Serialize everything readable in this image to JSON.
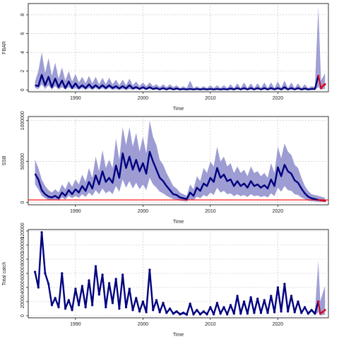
{
  "chart_data": [
    {
      "type": "line",
      "xlabel": "Time",
      "ylabel": "FBAR",
      "xlim": [
        1983,
        2027.5
      ],
      "ylim": [
        -0.2,
        9.2
      ],
      "xticks": [
        1990,
        2000,
        2010,
        2020
      ],
      "yticks": [
        0,
        2,
        4,
        6,
        8
      ],
      "ytick_labels": [
        "0",
        "2",
        "4",
        "6",
        "8"
      ],
      "grid": true,
      "colors": {
        "line": "#00007f",
        "band": "#9d9dd4",
        "proj": "#d6001c"
      },
      "x": [
        1984,
        1984.5,
        1985,
        1985.5,
        1986,
        1986.5,
        1987,
        1987.5,
        1988,
        1988.5,
        1989,
        1989.5,
        1990,
        1990.5,
        1991,
        1991.5,
        1992,
        1992.5,
        1993,
        1993.5,
        1994,
        1994.5,
        1995,
        1995.5,
        1996,
        1996.5,
        1997,
        1997.5,
        1998,
        1998.5,
        1999,
        1999.5,
        2000,
        2000.5,
        2001,
        2001.5,
        2002,
        2002.5,
        2003,
        2003.5,
        2004,
        2004.5,
        2005,
        2005.5,
        2006,
        2006.5,
        2007,
        2007.5,
        2008,
        2008.5,
        2009,
        2009.5,
        2010,
        2010.5,
        2011,
        2011.5,
        2012,
        2012.5,
        2013,
        2013.5,
        2014,
        2014.5,
        2015,
        2015.5,
        2016,
        2016.5,
        2017,
        2017.5,
        2018,
        2018.5,
        2019,
        2019.5,
        2020,
        2020.5,
        2021,
        2021.5,
        2022,
        2022.5,
        2023,
        2023.5,
        2024,
        2024.5,
        2025,
        2025.5,
        2026
      ],
      "values": [
        0.5,
        0.4,
        1.6,
        0.5,
        1.4,
        0.3,
        1.2,
        0.3,
        1.0,
        0.2,
        0.9,
        0.2,
        0.7,
        0.2,
        0.5,
        0.2,
        0.6,
        0.2,
        0.5,
        0.2,
        0.5,
        0.2,
        0.5,
        0.2,
        0.4,
        0.15,
        0.4,
        0.15,
        0.5,
        0.15,
        0.3,
        0.1,
        0.3,
        0.1,
        0.3,
        0.1,
        0.2,
        0.05,
        0.2,
        0.05,
        0.2,
        0.05,
        0.15,
        0.05,
        0.1,
        0.05,
        0.1,
        0.05,
        0.1,
        0.05,
        0.1,
        0.05,
        0.1,
        0.05,
        0.1,
        0.05,
        0.1,
        0.05,
        0.15,
        0.05,
        0.2,
        0.05,
        0.2,
        0.05,
        0.2,
        0.05,
        0.2,
        0.05,
        0.2,
        0.05,
        0.2,
        0.05,
        0.2,
        0.05,
        0.3,
        0.05,
        0.2,
        0.05,
        0.2,
        0.05,
        0.15,
        0.05,
        0.1,
        0.1,
        1.5
      ],
      "band_upper": [
        0.9,
        2.0,
        4.0,
        1.8,
        3.4,
        1.5,
        2.9,
        1.2,
        2.4,
        1.0,
        2.0,
        0.9,
        1.7,
        0.8,
        1.4,
        0.7,
        1.5,
        0.7,
        1.4,
        0.6,
        1.3,
        0.6,
        1.3,
        0.6,
        1.1,
        0.5,
        1.1,
        0.5,
        1.2,
        0.5,
        0.9,
        0.4,
        0.8,
        0.4,
        0.8,
        0.4,
        0.6,
        0.3,
        0.6,
        0.3,
        0.6,
        0.3,
        0.5,
        0.2,
        0.4,
        0.2,
        1.0,
        0.2,
        0.4,
        0.2,
        0.4,
        0.2,
        0.5,
        0.2,
        0.5,
        0.2,
        0.5,
        0.2,
        0.6,
        0.2,
        0.7,
        0.2,
        0.8,
        0.2,
        0.7,
        0.2,
        0.7,
        0.2,
        0.8,
        0.2,
        0.8,
        0.2,
        0.9,
        0.2,
        1.0,
        0.2,
        0.8,
        0.2,
        0.7,
        0.2,
        0.6,
        0.2,
        0.4,
        0.3,
        8.9
      ],
      "band_lower": [
        0.2,
        0.1,
        0.6,
        0.1,
        0.5,
        0.05,
        0.4,
        0.05,
        0.3,
        0.05,
        0.3,
        0.05,
        0.2,
        0.02,
        0.2,
        0.02,
        0.2,
        0.02,
        0.2,
        0.02,
        0.2,
        0.02,
        0.2,
        0.02,
        0.1,
        0.02,
        0.1,
        0.02,
        0.1,
        0.02,
        0.1,
        0.02,
        0.1,
        0.02,
        0.1,
        0.02,
        0.05,
        0.01,
        0.05,
        0.01,
        0.05,
        0.01,
        0.05,
        0.01,
        0.03,
        0.01,
        0.03,
        0.01,
        0.03,
        0.01,
        0.03,
        0.01,
        0.03,
        0.01,
        0.03,
        0.01,
        0.03,
        0.01,
        0.05,
        0.01,
        0.05,
        0.01,
        0.05,
        0.01,
        0.05,
        0.01,
        0.05,
        0.01,
        0.05,
        0.01,
        0.05,
        0.01,
        0.05,
        0.01,
        0.05,
        0.01,
        0.05,
        0.01,
        0.05,
        0.01,
        0.05,
        0.01,
        0.03,
        0.02,
        0.3
      ],
      "projection": {
        "x": [
          2026,
          2026.4,
          2026.8,
          2027
        ],
        "values": [
          1.5,
          0.2,
          0.5,
          0.6
        ],
        "band_upper": [
          8.9,
          1.0,
          1.5,
          1.8
        ],
        "band_lower": [
          0.3,
          0.05,
          0.1,
          0.1
        ]
      }
    },
    {
      "type": "line",
      "xlabel": "Time",
      "ylabel": "SSB",
      "xlim": [
        1983,
        2027.5
      ],
      "ylim": [
        -30000,
        1050000
      ],
      "xticks": [
        1990,
        2000,
        2010,
        2020
      ],
      "yticks": [
        0,
        500000,
        1000000
      ],
      "ytick_labels": [
        "0",
        "500000",
        "1000000"
      ],
      "grid": true,
      "reference_line": 30000,
      "colors": {
        "line": "#00007f",
        "band": "#9d9dd4",
        "ref": "#ff0000",
        "proj": "#d6001c"
      },
      "x": [
        1984,
        1984.5,
        1985,
        1985.5,
        1986,
        1986.5,
        1987,
        1987.5,
        1988,
        1988.5,
        1989,
        1989.5,
        1990,
        1990.5,
        1991,
        1991.5,
        1992,
        1992.5,
        1993,
        1993.5,
        1994,
        1994.5,
        1995,
        1995.5,
        1996,
        1996.5,
        1997,
        1997.5,
        1998,
        1998.5,
        1999,
        1999.5,
        2000,
        2000.5,
        2001,
        2001.5,
        2002,
        2002.5,
        2003,
        2003.5,
        2004,
        2004.5,
        2005,
        2005.5,
        2006,
        2006.5,
        2007,
        2007.5,
        2008,
        2008.5,
        2009,
        2009.5,
        2010,
        2010.5,
        2011,
        2011.5,
        2012,
        2012.5,
        2013,
        2013.5,
        2014,
        2014.5,
        2015,
        2015.5,
        2016,
        2016.5,
        2017,
        2017.5,
        2018,
        2018.5,
        2019,
        2019.5,
        2020,
        2020.5,
        2021,
        2021.5,
        2022,
        2022.5,
        2023,
        2023.5,
        2024,
        2024.5,
        2025,
        2025.5,
        2026
      ],
      "values": [
        350000,
        280000,
        150000,
        100000,
        70000,
        60000,
        80000,
        50000,
        120000,
        80000,
        150000,
        100000,
        160000,
        120000,
        200000,
        140000,
        250000,
        170000,
        330000,
        220000,
        380000,
        250000,
        300000,
        240000,
        450000,
        300000,
        600000,
        420000,
        560000,
        400000,
        520000,
        380000,
        480000,
        350000,
        620000,
        500000,
        400000,
        300000,
        260000,
        200000,
        150000,
        100000,
        90000,
        60000,
        50000,
        40000,
        120000,
        80000,
        180000,
        140000,
        230000,
        200000,
        300000,
        250000,
        420000,
        300000,
        340000,
        260000,
        280000,
        200000,
        260000,
        200000,
        230000,
        180000,
        260000,
        200000,
        220000,
        180000,
        210000,
        170000,
        280000,
        200000,
        430000,
        320000,
        460000,
        380000,
        350000,
        270000,
        240000,
        170000,
        110000,
        70000,
        50000,
        40000,
        30000
      ],
      "band_upper": [
        520000,
        420000,
        280000,
        200000,
        150000,
        120000,
        160000,
        120000,
        220000,
        160000,
        260000,
        190000,
        280000,
        220000,
        340000,
        250000,
        420000,
        300000,
        560000,
        380000,
        640000,
        420000,
        520000,
        420000,
        780000,
        520000,
        920000,
        700000,
        920000,
        680000,
        850000,
        620000,
        800000,
        600000,
        1000000,
        800000,
        700000,
        520000,
        460000,
        360000,
        280000,
        200000,
        170000,
        120000,
        100000,
        80000,
        220000,
        160000,
        320000,
        260000,
        420000,
        360000,
        500000,
        440000,
        680000,
        500000,
        560000,
        440000,
        480000,
        360000,
        440000,
        360000,
        400000,
        320000,
        440000,
        360000,
        380000,
        320000,
        360000,
        300000,
        480000,
        360000,
        680000,
        540000,
        720000,
        620000,
        580000,
        460000,
        420000,
        300000,
        200000,
        140000,
        100000,
        90000,
        80000
      ],
      "band_lower": [
        220000,
        160000,
        80000,
        50000,
        30000,
        25000,
        35000,
        20000,
        60000,
        35000,
        80000,
        50000,
        80000,
        55000,
        100000,
        65000,
        120000,
        80000,
        150000,
        100000,
        170000,
        110000,
        140000,
        100000,
        200000,
        130000,
        280000,
        180000,
        260000,
        170000,
        240000,
        160000,
        220000,
        150000,
        300000,
        220000,
        180000,
        130000,
        110000,
        80000,
        60000,
        40000,
        35000,
        20000,
        15000,
        10000,
        40000,
        25000,
        70000,
        50000,
        90000,
        70000,
        120000,
        90000,
        180000,
        120000,
        140000,
        100000,
        110000,
        75000,
        100000,
        75000,
        90000,
        65000,
        100000,
        75000,
        85000,
        65000,
        80000,
        60000,
        110000,
        75000,
        180000,
        130000,
        200000,
        150000,
        140000,
        100000,
        90000,
        60000,
        40000,
        20000,
        15000,
        10000,
        8000
      ],
      "projection": {
        "x": [
          2026,
          2026.4,
          2026.8,
          2027
        ],
        "values": [
          30000,
          25000,
          20000,
          18000
        ],
        "band_upper": [
          80000,
          70000,
          60000,
          55000
        ],
        "band_lower": [
          8000,
          7000,
          6000,
          5000
        ]
      }
    },
    {
      "type": "line",
      "xlabel": "Time",
      "ylabel": "Total catch",
      "xlim": [
        1983,
        2027.5
      ],
      "ylim": [
        -3000,
        122000
      ],
      "xticks": [
        1990,
        2000,
        2010,
        2020
      ],
      "yticks": [
        0,
        20000,
        40000,
        60000,
        80000,
        100000,
        120000
      ],
      "ytick_labels": [
        "0",
        "20000",
        "40000",
        "60000",
        "80000",
        "100000",
        "120000"
      ],
      "grid": true,
      "markers": true,
      "colors": {
        "line": "#00007f",
        "band": "#9d9dd4",
        "proj": "#d6001c"
      },
      "x": [
        1984,
        1984.5,
        1985,
        1985.5,
        1986,
        1986.5,
        1987,
        1987.5,
        1988,
        1988.5,
        1989,
        1989.5,
        1990,
        1990.5,
        1991,
        1991.5,
        1992,
        1992.5,
        1993,
        1993.5,
        1994,
        1994.5,
        1995,
        1995.5,
        1996,
        1996.5,
        1997,
        1997.5,
        1998,
        1998.5,
        1999,
        1999.5,
        2000,
        2000.5,
        2001,
        2001.5,
        2002,
        2002.5,
        2003,
        2003.5,
        2004,
        2004.5,
        2005,
        2005.5,
        2006,
        2006.5,
        2007,
        2007.5,
        2008,
        2008.5,
        2009,
        2009.5,
        2010,
        2010.5,
        2011,
        2011.5,
        2012,
        2012.5,
        2013,
        2013.5,
        2014,
        2014.5,
        2015,
        2015.5,
        2016,
        2016.5,
        2017,
        2017.5,
        2018,
        2018.5,
        2019,
        2019.5,
        2020,
        2020.5,
        2021,
        2021.5,
        2022,
        2022.5,
        2023,
        2023.5,
        2024,
        2024.5,
        2025,
        2025.5,
        2026
      ],
      "values": [
        62000,
        40000,
        118000,
        60000,
        45000,
        15000,
        25000,
        12000,
        60000,
        10000,
        22000,
        8000,
        38000,
        15000,
        42000,
        12000,
        50000,
        15000,
        70000,
        30000,
        58000,
        12000,
        46000,
        18000,
        52000,
        10000,
        58000,
        12000,
        38000,
        8000,
        25000,
        6000,
        20000,
        5000,
        65000,
        8000,
        22000,
        5000,
        18000,
        4000,
        10000,
        3000,
        6000,
        2000,
        4000,
        1500,
        17000,
        2000,
        8000,
        2000,
        6000,
        2000,
        12000,
        2000,
        18000,
        3000,
        12000,
        2000,
        15000,
        3000,
        28000,
        3000,
        20000,
        3000,
        26000,
        4000,
        24000,
        4000,
        22000,
        4000,
        28000,
        5000,
        40000,
        6000,
        45000,
        6000,
        28000,
        5000,
        20000,
        4000,
        12000,
        3000,
        8000,
        3000,
        20000
      ],
      "band_upper": [
        64000,
        42000,
        120000,
        62000,
        47000,
        17000,
        27000,
        14000,
        62000,
        12000,
        24000,
        10000,
        40000,
        17000,
        44000,
        14000,
        52000,
        17000,
        72000,
        32000,
        60000,
        14000,
        48000,
        20000,
        54000,
        12000,
        60000,
        14000,
        40000,
        10000,
        27000,
        8000,
        22000,
        7000,
        67000,
        10000,
        24000,
        7000,
        20000,
        6000,
        12000,
        5000,
        8000,
        4000,
        6000,
        3500,
        19000,
        4000,
        10000,
        4000,
        8000,
        4000,
        14000,
        4000,
        20000,
        5000,
        14000,
        4000,
        17000,
        5000,
        30000,
        5000,
        22000,
        5000,
        28000,
        6000,
        26000,
        6000,
        24000,
        6000,
        30000,
        7000,
        42000,
        8000,
        47000,
        8000,
        30000,
        7000,
        22000,
        6000,
        14000,
        5000,
        10000,
        5000,
        78000
      ],
      "band_lower": [
        60000,
        38000,
        116000,
        58000,
        43000,
        13000,
        23000,
        10000,
        58000,
        8000,
        20000,
        6000,
        36000,
        13000,
        40000,
        10000,
        48000,
        13000,
        68000,
        28000,
        56000,
        10000,
        44000,
        16000,
        50000,
        8000,
        56000,
        10000,
        36000,
        6000,
        23000,
        4000,
        18000,
        3000,
        63000,
        6000,
        20000,
        3000,
        16000,
        2000,
        8000,
        1000,
        4000,
        500,
        2000,
        300,
        15000,
        500,
        6000,
        500,
        4000,
        500,
        10000,
        500,
        16000,
        1000,
        10000,
        500,
        13000,
        1000,
        26000,
        1000,
        18000,
        1000,
        24000,
        2000,
        22000,
        2000,
        20000,
        2000,
        26000,
        3000,
        38000,
        4000,
        43000,
        4000,
        26000,
        3000,
        18000,
        2000,
        10000,
        1000,
        6000,
        1000,
        5000
      ],
      "projection": {
        "x": [
          2026,
          2026.3,
          2026.6,
          2027
        ],
        "values": [
          20000,
          3000,
          5000,
          8000
        ],
        "band_upper": [
          78000,
          20000,
          30000,
          42000
        ],
        "band_lower": [
          5000,
          500,
          1000,
          1500
        ]
      }
    }
  ]
}
